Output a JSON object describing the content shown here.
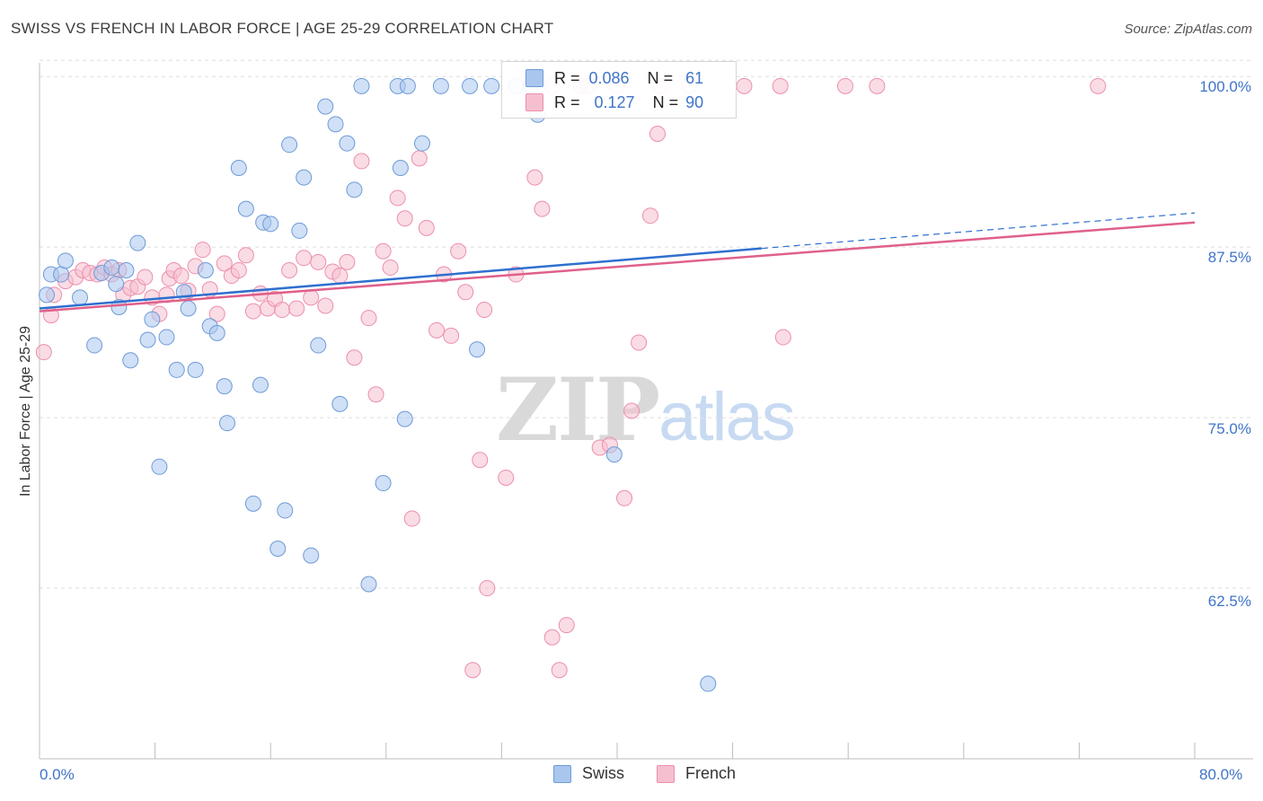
{
  "title": "SWISS VS FRENCH IN LABOR FORCE | AGE 25-29 CORRELATION CHART",
  "source": "Source: ZipAtlas.com",
  "watermark": {
    "zip": "ZIP",
    "atlas": "atlas"
  },
  "colors": {
    "swiss_fill": "#a9c6ee",
    "swiss_stroke": "#6d9ad8",
    "swiss_line": "#2f6fcf",
    "french_fill": "#f6bfd0",
    "french_stroke": "#ec8fac",
    "french_line": "#e0608a",
    "axis_text": "#3f74c9",
    "grid": "#dddddd"
  },
  "legend_top": {
    "swiss": {
      "r_label": "R =",
      "r_value": "0.086",
      "n_label": "N =",
      "n_value": "61"
    },
    "french": {
      "r_label": "R =",
      "r_value": "0.127",
      "n_label": "N =",
      "n_value": "90"
    }
  },
  "chart_data": {
    "type": "scatter",
    "title": "SWISS VS FRENCH IN LABOR FORCE | AGE 25-29 CORRELATION CHART",
    "xlabel": "",
    "ylabel": "In Labor Force | Age 25-29",
    "xlim": [
      0,
      80
    ],
    "ylim": [
      50,
      101
    ],
    "x_tick_labels": [
      "0.0%",
      "80.0%"
    ],
    "y_ticks": [
      62.5,
      75.0,
      87.5,
      100.0
    ],
    "y_tick_labels": [
      "62.5%",
      "75.0%",
      "87.5%",
      "100.0%"
    ],
    "grid": true,
    "legend_position": "bottom-center",
    "series": [
      {
        "name": "Swiss",
        "trend": {
          "x": [
            0,
            50
          ],
          "y": [
            83.0,
            87.4
          ],
          "extended_x": [
            50,
            80
          ],
          "extended_y": [
            87.4,
            90.0
          ]
        },
        "points": [
          [
            0.5,
            84.0
          ],
          [
            0.8,
            85.5
          ],
          [
            1.5,
            85.5
          ],
          [
            1.8,
            86.5
          ],
          [
            2.8,
            83.8
          ],
          [
            3.8,
            80.3
          ],
          [
            4.3,
            85.6
          ],
          [
            5.0,
            86.0
          ],
          [
            5.3,
            84.8
          ],
          [
            5.5,
            83.1
          ],
          [
            6.0,
            85.8
          ],
          [
            6.3,
            79.2
          ],
          [
            6.8,
            87.8
          ],
          [
            7.5,
            80.7
          ],
          [
            7.8,
            82.2
          ],
          [
            8.3,
            71.4
          ],
          [
            8.8,
            80.9
          ],
          [
            9.5,
            78.5
          ],
          [
            10.0,
            84.2
          ],
          [
            10.3,
            83.0
          ],
          [
            10.8,
            78.5
          ],
          [
            11.5,
            85.8
          ],
          [
            11.8,
            81.7
          ],
          [
            12.3,
            81.2
          ],
          [
            12.8,
            77.3
          ],
          [
            13.0,
            74.6
          ],
          [
            13.8,
            93.3
          ],
          [
            14.3,
            90.3
          ],
          [
            14.8,
            68.7
          ],
          [
            15.3,
            77.4
          ],
          [
            15.5,
            89.3
          ],
          [
            16.0,
            89.2
          ],
          [
            16.5,
            65.4
          ],
          [
            17.0,
            68.2
          ],
          [
            17.3,
            95.0
          ],
          [
            18.0,
            88.7
          ],
          [
            18.3,
            92.6
          ],
          [
            18.8,
            64.9
          ],
          [
            19.3,
            80.3
          ],
          [
            19.8,
            97.8
          ],
          [
            20.8,
            76.0
          ],
          [
            21.8,
            91.7
          ],
          [
            21.3,
            95.1
          ],
          [
            20.5,
            96.5
          ],
          [
            22.8,
            62.8
          ],
          [
            23.8,
            70.2
          ],
          [
            25.0,
            93.3
          ],
          [
            25.3,
            74.9
          ],
          [
            26.5,
            95.1
          ],
          [
            22.3,
            99.3
          ],
          [
            24.8,
            99.3
          ],
          [
            25.5,
            99.3
          ],
          [
            27.8,
            99.3
          ],
          [
            29.8,
            99.3
          ],
          [
            31.3,
            99.3
          ],
          [
            33.0,
            99.3
          ],
          [
            34.0,
            99.3
          ],
          [
            34.5,
            97.2
          ],
          [
            30.3,
            80.0
          ],
          [
            39.8,
            72.3
          ],
          [
            46.3,
            55.5
          ]
        ]
      },
      {
        "name": "French",
        "trend": {
          "x": [
            0,
            80
          ],
          "y": [
            82.8,
            89.3
          ]
        },
        "points": [
          [
            0.3,
            79.8
          ],
          [
            0.8,
            82.5
          ],
          [
            1.0,
            84.0
          ],
          [
            1.8,
            85.0
          ],
          [
            2.5,
            85.3
          ],
          [
            3.0,
            85.8
          ],
          [
            3.5,
            85.6
          ],
          [
            4.0,
            85.5
          ],
          [
            4.5,
            86.0
          ],
          [
            5.0,
            85.5
          ],
          [
            5.5,
            85.8
          ],
          [
            5.8,
            84.0
          ],
          [
            6.3,
            84.5
          ],
          [
            6.8,
            84.6
          ],
          [
            7.3,
            85.3
          ],
          [
            7.8,
            83.8
          ],
          [
            8.3,
            82.6
          ],
          [
            8.8,
            84.0
          ],
          [
            9.0,
            85.2
          ],
          [
            9.3,
            85.8
          ],
          [
            9.8,
            85.4
          ],
          [
            10.3,
            84.3
          ],
          [
            10.8,
            86.1
          ],
          [
            11.3,
            87.3
          ],
          [
            11.8,
            84.4
          ],
          [
            12.3,
            82.6
          ],
          [
            12.8,
            86.3
          ],
          [
            13.3,
            85.4
          ],
          [
            13.8,
            85.8
          ],
          [
            14.3,
            86.9
          ],
          [
            14.8,
            82.8
          ],
          [
            15.3,
            84.1
          ],
          [
            15.8,
            83.0
          ],
          [
            16.3,
            83.7
          ],
          [
            16.8,
            82.9
          ],
          [
            17.3,
            85.8
          ],
          [
            17.8,
            83.0
          ],
          [
            18.3,
            86.7
          ],
          [
            18.8,
            83.8
          ],
          [
            19.3,
            86.4
          ],
          [
            19.8,
            83.2
          ],
          [
            20.3,
            85.7
          ],
          [
            20.8,
            85.4
          ],
          [
            21.3,
            86.4
          ],
          [
            21.8,
            79.4
          ],
          [
            22.3,
            93.8
          ],
          [
            22.8,
            82.3
          ],
          [
            23.3,
            76.7
          ],
          [
            23.8,
            87.2
          ],
          [
            24.3,
            86.0
          ],
          [
            24.8,
            91.1
          ],
          [
            25.3,
            89.6
          ],
          [
            25.8,
            67.6
          ],
          [
            26.3,
            94.0
          ],
          [
            26.8,
            88.9
          ],
          [
            27.5,
            81.4
          ],
          [
            28.0,
            85.5
          ],
          [
            28.5,
            81.0
          ],
          [
            29.0,
            87.2
          ],
          [
            29.5,
            84.2
          ],
          [
            30.5,
            71.9
          ],
          [
            30.8,
            82.9
          ],
          [
            30.0,
            56.5
          ],
          [
            31.0,
            62.5
          ],
          [
            32.3,
            70.6
          ],
          [
            33.0,
            85.5
          ],
          [
            34.3,
            92.6
          ],
          [
            34.8,
            90.3
          ],
          [
            35.5,
            58.9
          ],
          [
            36.0,
            56.5
          ],
          [
            36.5,
            59.8
          ],
          [
            38.8,
            72.8
          ],
          [
            39.5,
            73.0
          ],
          [
            40.5,
            69.1
          ],
          [
            41.0,
            75.5
          ],
          [
            41.5,
            80.5
          ],
          [
            42.3,
            89.8
          ],
          [
            42.8,
            95.8
          ],
          [
            35.5,
            99.3
          ],
          [
            37.5,
            99.3
          ],
          [
            38.0,
            99.3
          ],
          [
            40.0,
            99.3
          ],
          [
            43.0,
            99.3
          ],
          [
            45.0,
            99.3
          ],
          [
            48.8,
            99.3
          ],
          [
            51.3,
            99.3
          ],
          [
            51.5,
            80.9
          ],
          [
            55.8,
            99.3
          ],
          [
            58.0,
            99.3
          ],
          [
            73.3,
            99.3
          ]
        ]
      }
    ]
  },
  "legend_bottom": [
    {
      "label": "Swiss"
    },
    {
      "label": "French"
    }
  ]
}
